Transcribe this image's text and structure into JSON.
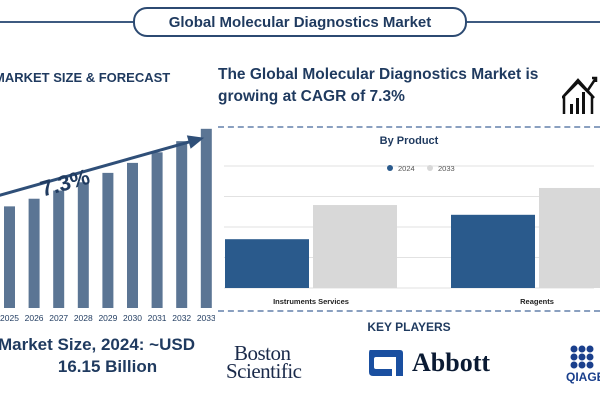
{
  "header": {
    "title": "Global Molecular Diagnostics Market"
  },
  "left": {
    "heading": "MARKET SIZE & FORECAST",
    "cagr_label": "7.3%",
    "market_size_line1": "Market Size, 2024: ~USD",
    "market_size_line2": "16.15 Billion"
  },
  "right": {
    "headline": "The Global Molecular Diagnostics Market is growing at CAGR of 7.3%",
    "key_players_title": "KEY PLAYERS",
    "logos": {
      "boston_line1": "Boston",
      "boston_line2": "Scientific",
      "abbott": "Abbott",
      "qiagen": "QIAGEN"
    }
  },
  "colors": {
    "navy": "#1f3a5f",
    "bar_blue": "#5b7594",
    "series_2024": "#2a5a8c",
    "series_2033": "#d8d8d8"
  },
  "chart_data": [
    {
      "type": "bar",
      "title": "",
      "categories": [
        "2025",
        "2026",
        "2027",
        "2028",
        "2029",
        "2030",
        "2031",
        "2032",
        "2033"
      ],
      "values": [
        17.3,
        18.6,
        20.0,
        21.4,
        23.0,
        24.7,
        26.5,
        28.4,
        30.5
      ],
      "annotation": "7.3%",
      "ylim": [
        0,
        32
      ]
    },
    {
      "type": "bar",
      "title": "By Product",
      "categories": [
        "Instruments Services",
        "Reagents"
      ],
      "series": [
        {
          "name": "2024",
          "values": [
            40,
            60
          ]
        },
        {
          "name": "2033",
          "values": [
            68,
            82
          ]
        }
      ],
      "ylim": [
        0,
        100
      ],
      "legend": "top-center",
      "grid": true
    }
  ]
}
